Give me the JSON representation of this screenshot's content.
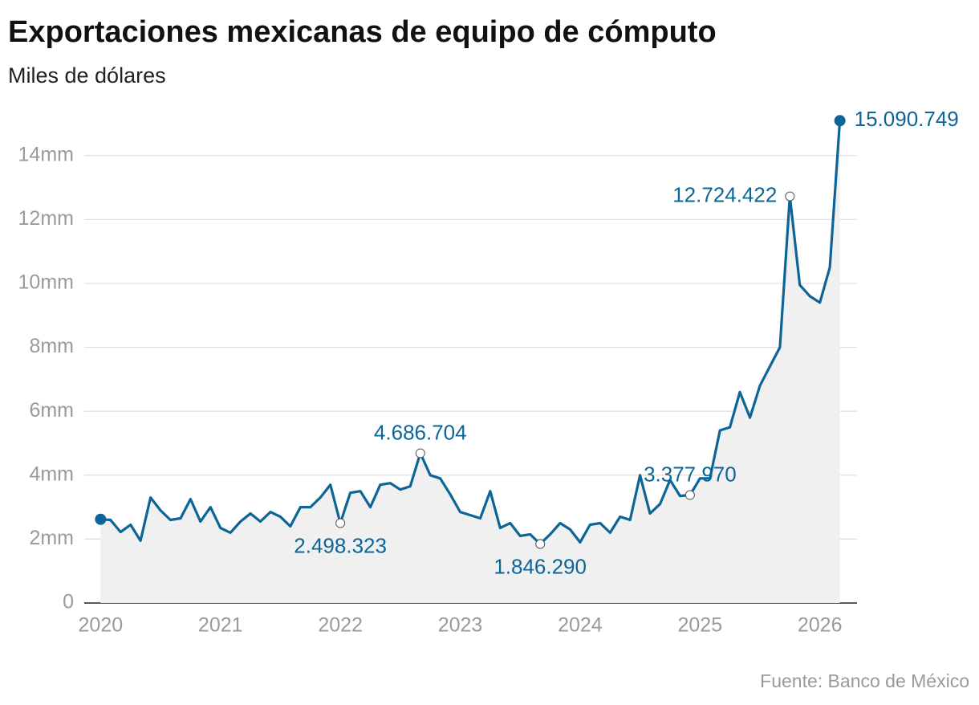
{
  "chart_data": {
    "type": "line",
    "title": "Exportaciones mexicanas de equipo de cómputo",
    "subtitle": "Miles de dólares",
    "source": "Fuente: Banco de México",
    "x": [
      2020,
      2020.083,
      2020.167,
      2020.25,
      2020.333,
      2020.417,
      2020.5,
      2020.583,
      2020.667,
      2020.75,
      2020.833,
      2020.917,
      2021,
      2021.083,
      2021.167,
      2021.25,
      2021.333,
      2021.417,
      2021.5,
      2021.583,
      2021.667,
      2021.75,
      2021.833,
      2021.917,
      2022,
      2022.083,
      2022.167,
      2022.25,
      2022.333,
      2022.417,
      2022.5,
      2022.583,
      2022.667,
      2022.75,
      2022.833,
      2022.917,
      2023,
      2023.083,
      2023.167,
      2023.25,
      2023.333,
      2023.417,
      2023.5,
      2023.583,
      2023.667,
      2023.75,
      2023.833,
      2023.917,
      2024,
      2024.083,
      2024.167,
      2024.25,
      2024.333,
      2024.417,
      2024.5,
      2024.583,
      2024.667,
      2024.75,
      2024.833,
      2024.917,
      2025,
      2025.083,
      2025.167,
      2025.25,
      2025.333,
      2025.417,
      2025.5,
      2025.583,
      2025.667,
      2025.75,
      2025.833,
      2025.917,
      2026,
      2026.083,
      2026.167
    ],
    "series": [
      {
        "name": "Exportaciones",
        "color": "#0c6597",
        "values": [
          2620000,
          2600000,
          2220000,
          2450000,
          1950000,
          3300000,
          2900000,
          2600000,
          2650000,
          3250000,
          2550000,
          3000000,
          2350000,
          2200000,
          2550000,
          2800000,
          2550000,
          2850000,
          2700000,
          2400000,
          3000000,
          3000000,
          3300000,
          3700000,
          2498323,
          3450000,
          3500000,
          3000000,
          3700000,
          3750000,
          3550000,
          3650000,
          4686704,
          4000000,
          3900000,
          3400000,
          2850000,
          2750000,
          2650000,
          3500000,
          2350000,
          2500000,
          2100000,
          2150000,
          1846290,
          2150000,
          2500000,
          2300000,
          1900000,
          2450000,
          2500000,
          2200000,
          2700000,
          2600000,
          4000000,
          2800000,
          3100000,
          3850000,
          3350000,
          3377970,
          3900000,
          3900000,
          5400000,
          5500000,
          6600000,
          5800000,
          6800000,
          7400000,
          8000000,
          12724422,
          9950000,
          9600000,
          9400000,
          10500000,
          15090749
        ],
        "value_labels": [
          null,
          null,
          null,
          null,
          null,
          null,
          null,
          null,
          null,
          null,
          null,
          null,
          null,
          null,
          null,
          null,
          null,
          null,
          null,
          null,
          null,
          null,
          null,
          null,
          "2.498.323",
          null,
          null,
          null,
          null,
          null,
          null,
          null,
          "4.686.704",
          null,
          null,
          null,
          null,
          null,
          null,
          null,
          null,
          null,
          null,
          null,
          "1.846.290",
          null,
          null,
          null,
          null,
          null,
          null,
          null,
          null,
          null,
          null,
          null,
          null,
          null,
          null,
          "3.377.970",
          null,
          null,
          null,
          null,
          null,
          null,
          null,
          null,
          null,
          "12.724.422",
          null,
          null,
          null,
          null,
          "15.090.749"
        ]
      }
    ],
    "xlim": [
      2019.75,
      2026.31
    ],
    "xticks": [
      2020,
      2021,
      2022,
      2023,
      2024,
      2025,
      2026
    ],
    "ylim": [
      0,
      15500000
    ],
    "yticks": [
      0,
      {
        "value": 2000000,
        "label": "2mm"
      },
      {
        "value": 4000000,
        "label": "4mm"
      },
      {
        "value": 6000000,
        "label": "6mm"
      },
      {
        "value": 8000000,
        "label": "8mm"
      },
      {
        "value": 10000000,
        "label": "10mm"
      },
      {
        "value": 12000000,
        "label": "12mm"
      },
      {
        "value": 14000000,
        "label": "14mm"
      }
    ],
    "grid": true
  }
}
